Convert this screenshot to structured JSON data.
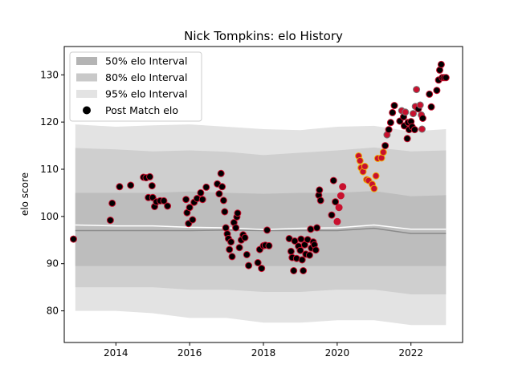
{
  "chart_data": {
    "type": "scatter",
    "title": "Nick Tompkins: elo History",
    "ylabel": "elo score",
    "xlabel": "",
    "xlim": [
      2012.6,
      2023.4
    ],
    "ylim": [
      73.3,
      136.0
    ],
    "x_ticks": [
      2014,
      2016,
      2018,
      2020,
      2022
    ],
    "y_ticks": [
      80,
      90,
      100,
      110,
      120,
      130
    ],
    "grid": false,
    "legend_position": "top-left",
    "legend": [
      {
        "label": "50% elo Interval",
        "color": "#b4b4b4"
      },
      {
        "label": "80% elo Interval",
        "color": "#c9c9c9"
      },
      {
        "label": "95% elo Interval",
        "color": "#e3e3e3"
      },
      {
        "label": "Post Match elo",
        "color": "#000000"
      }
    ],
    "bands": {
      "x": [
        2012.9,
        2014.0,
        2015.0,
        2016.0,
        2017.0,
        2018.0,
        2019.0,
        2020.0,
        2021.0,
        2022.0,
        2022.95
      ],
      "median": [
        97.0,
        97.0,
        97.0,
        97.0,
        97.1,
        97.0,
        97.0,
        97.0,
        97.5,
        96.4,
        96.4
      ],
      "mean": [
        98.2,
        98.0,
        98.0,
        97.7,
        97.6,
        97.2,
        97.5,
        97.6,
        98.2,
        97.3,
        97.3
      ],
      "p50": [
        [
          89.5,
          105.0
        ],
        [
          89.5,
          105.0
        ],
        [
          89.5,
          105.0
        ],
        [
          89.5,
          105.3
        ],
        [
          89.5,
          105.0
        ],
        [
          89.5,
          104.8
        ],
        [
          89.5,
          105.0
        ],
        [
          89.5,
          105.0
        ],
        [
          89.5,
          105.4
        ],
        [
          89.5,
          104.3
        ],
        [
          89.5,
          104.5
        ]
      ],
      "p80": [
        [
          85.0,
          114.5
        ],
        [
          85.0,
          114.2
        ],
        [
          85.0,
          113.8
        ],
        [
          84.5,
          114.0
        ],
        [
          84.5,
          113.7
        ],
        [
          84.0,
          113.0
        ],
        [
          84.0,
          113.5
        ],
        [
          84.5,
          114.0
        ],
        [
          84.5,
          114.6
        ],
        [
          83.5,
          113.8
        ],
        [
          83.5,
          114.0
        ]
      ],
      "p95": [
        [
          80.0,
          119.5
        ],
        [
          80.0,
          119.0
        ],
        [
          79.5,
          119.3
        ],
        [
          78.5,
          119.5
        ],
        [
          78.5,
          119.0
        ],
        [
          77.5,
          118.5
        ],
        [
          77.5,
          118.3
        ],
        [
          78.0,
          119.0
        ],
        [
          78.0,
          119.2
        ],
        [
          77.0,
          118.0
        ],
        [
          77.0,
          118.5
        ]
      ]
    },
    "series": [
      {
        "values": [
          [
            2012.85,
            95.2
          ],
          [
            2013.85,
            99.2
          ],
          [
            2013.9,
            102.8
          ],
          [
            2014.1,
            106.3
          ],
          [
            2014.4,
            106.6
          ],
          [
            2014.75,
            108.3
          ],
          [
            2014.82,
            108.2
          ],
          [
            2014.88,
            104.0
          ],
          [
            2014.92,
            108.4
          ],
          [
            2014.98,
            106.5
          ],
          [
            2015.0,
            104.0
          ],
          [
            2015.05,
            102.1
          ],
          [
            2015.1,
            103.1
          ],
          [
            2015.2,
            103.3
          ],
          [
            2015.3,
            103.3
          ],
          [
            2015.4,
            102.2
          ],
          [
            2015.9,
            103.6
          ],
          [
            2015.93,
            100.8
          ],
          [
            2015.97,
            98.5
          ],
          [
            2016.0,
            101.9
          ],
          [
            2016.08,
            99.3
          ],
          [
            2016.12,
            103.0
          ],
          [
            2016.2,
            103.8
          ],
          [
            2016.3,
            105.0
          ],
          [
            2016.35,
            103.6
          ],
          [
            2016.45,
            106.2
          ],
          [
            2016.75,
            106.9
          ],
          [
            2016.8,
            104.8
          ],
          [
            2016.85,
            109.1
          ],
          [
            2016.88,
            106.3
          ],
          [
            2016.92,
            103.4
          ],
          [
            2016.95,
            101.0
          ],
          [
            2016.98,
            97.6
          ],
          [
            2017.02,
            96.3
          ],
          [
            2017.05,
            95.3
          ],
          [
            2017.08,
            93.0
          ],
          [
            2017.12,
            94.6
          ],
          [
            2017.15,
            91.5
          ],
          [
            2017.2,
            98.7
          ],
          [
            2017.25,
            97.6
          ],
          [
            2017.28,
            99.9
          ],
          [
            2017.3,
            100.7
          ],
          [
            2017.35,
            93.4
          ],
          [
            2017.4,
            95.0
          ],
          [
            2017.45,
            96.1
          ],
          [
            2017.5,
            95.5
          ],
          [
            2017.55,
            91.9
          ],
          [
            2017.6,
            89.6
          ],
          [
            2017.85,
            90.2
          ],
          [
            2017.9,
            93.0
          ],
          [
            2017.95,
            89.0
          ],
          [
            2018.0,
            93.8
          ],
          [
            2018.05,
            93.9
          ],
          [
            2018.1,
            97.1
          ],
          [
            2018.15,
            93.8
          ],
          [
            2018.7,
            95.3
          ],
          [
            2018.75,
            92.6
          ],
          [
            2018.78,
            91.3
          ],
          [
            2018.82,
            88.5
          ],
          [
            2018.85,
            94.8
          ],
          [
            2018.9,
            91.1
          ],
          [
            2018.95,
            93.7
          ],
          [
            2019.0,
            92.8
          ],
          [
            2019.02,
            95.2
          ],
          [
            2019.05,
            90.8
          ],
          [
            2019.08,
            88.5
          ],
          [
            2019.12,
            94.0
          ],
          [
            2019.15,
            92.0
          ],
          [
            2019.2,
            95.1
          ],
          [
            2019.25,
            91.8
          ],
          [
            2019.28,
            97.3
          ],
          [
            2019.3,
            93.3
          ],
          [
            2019.35,
            94.6
          ],
          [
            2019.38,
            94.0
          ],
          [
            2019.42,
            92.9
          ],
          [
            2019.45,
            97.6
          ],
          [
            2019.5,
            104.5
          ],
          [
            2019.52,
            105.6
          ],
          [
            2019.55,
            103.4
          ],
          [
            2019.85,
            100.3
          ],
          [
            2019.9,
            107.6
          ],
          [
            2019.95,
            103.1
          ],
          [
            2020.0,
            98.9
          ],
          [
            2020.05,
            101.9
          ],
          [
            2020.1,
            104.4
          ],
          [
            2020.15,
            106.3
          ],
          [
            2020.58,
            112.8
          ],
          [
            2020.62,
            111.8
          ],
          [
            2020.65,
            110.3
          ],
          [
            2020.7,
            109.5
          ],
          [
            2020.75,
            110.6
          ],
          [
            2020.8,
            107.8
          ],
          [
            2020.85,
            107.6
          ],
          [
            2020.95,
            106.8
          ],
          [
            2021.0,
            105.9
          ],
          [
            2021.05,
            108.6
          ],
          [
            2021.1,
            112.3
          ],
          [
            2021.2,
            112.4
          ],
          [
            2021.25,
            113.6
          ],
          [
            2021.3,
            115.0
          ],
          [
            2021.35,
            117.3
          ],
          [
            2021.4,
            118.4
          ],
          [
            2021.45,
            119.9
          ],
          [
            2021.5,
            122.0
          ],
          [
            2021.55,
            123.5
          ],
          [
            2021.7,
            120.2
          ],
          [
            2021.75,
            122.4
          ],
          [
            2021.8,
            121.1
          ],
          [
            2021.82,
            119.2
          ],
          [
            2021.85,
            122.1
          ],
          [
            2021.9,
            116.5
          ],
          [
            2021.92,
            119.9
          ],
          [
            2021.95,
            118.4
          ],
          [
            2022.0,
            120.1
          ],
          [
            2022.03,
            119.0
          ],
          [
            2022.06,
            121.8
          ],
          [
            2022.1,
            118.4
          ],
          [
            2022.12,
            123.3
          ],
          [
            2022.15,
            126.9
          ],
          [
            2022.2,
            122.8
          ],
          [
            2022.25,
            123.6
          ],
          [
            2022.28,
            121.5
          ],
          [
            2022.3,
            118.5
          ],
          [
            2022.32,
            120.8
          ],
          [
            2022.5,
            125.9
          ],
          [
            2022.55,
            123.2
          ],
          [
            2022.7,
            126.7
          ],
          [
            2022.75,
            128.9
          ],
          [
            2022.78,
            131.0
          ],
          [
            2022.82,
            132.2
          ],
          [
            2022.85,
            129.4
          ],
          [
            2022.9,
            129.4
          ],
          [
            2022.95,
            129.4
          ]
        ]
      }
    ]
  }
}
